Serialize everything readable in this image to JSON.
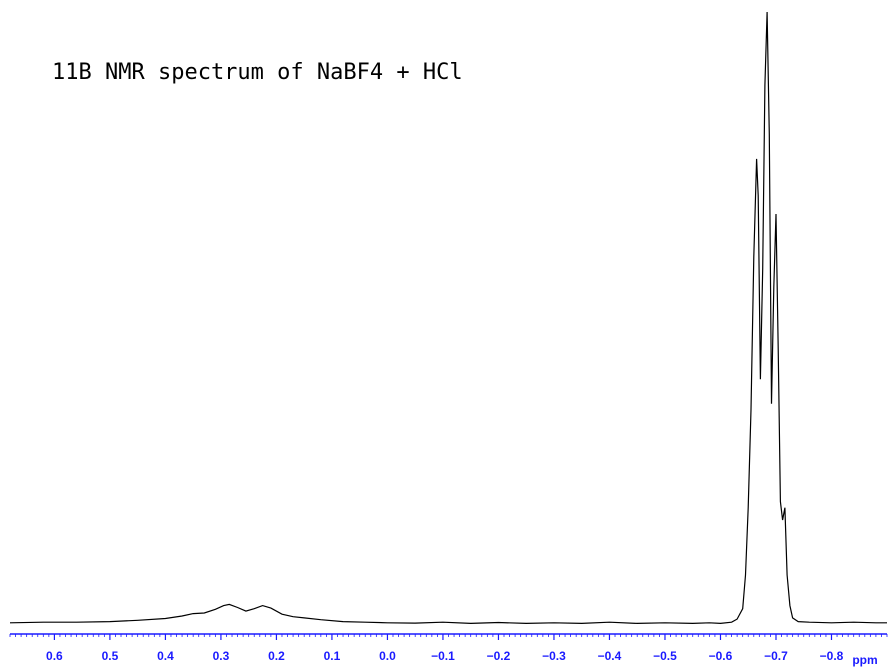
{
  "chart_data": {
    "type": "line",
    "title": "11B NMR spectrum of NaBF4 + HCl",
    "xlabel": "ppm",
    "ylabel": "",
    "x_reversed": true,
    "xlim": [
      0.68,
      -0.9
    ],
    "ylim": [
      0,
      100
    ],
    "grid": false,
    "xticks": [
      {
        "value": 0.6,
        "label": "0.6"
      },
      {
        "value": 0.5,
        "label": "0.5"
      },
      {
        "value": 0.4,
        "label": "0.4"
      },
      {
        "value": 0.3,
        "label": "0.3"
      },
      {
        "value": 0.2,
        "label": "0.2"
      },
      {
        "value": 0.1,
        "label": "0.1"
      },
      {
        "value": 0.0,
        "label": "0.0"
      },
      {
        "value": -0.1,
        "label": "−0.1"
      },
      {
        "value": -0.2,
        "label": "−0.2"
      },
      {
        "value": -0.3,
        "label": "−0.3"
      },
      {
        "value": -0.4,
        "label": "−0.4"
      },
      {
        "value": -0.5,
        "label": "−0.5"
      },
      {
        "value": -0.6,
        "label": "−0.6"
      },
      {
        "value": -0.7,
        "label": "−0.7"
      },
      {
        "value": -0.8,
        "label": "−0.8"
      }
    ],
    "series": [
      {
        "color": "#000000",
        "points": [
          [
            0.68,
            0.2
          ],
          [
            0.62,
            0.3
          ],
          [
            0.56,
            0.3
          ],
          [
            0.5,
            0.4
          ],
          [
            0.45,
            0.6
          ],
          [
            0.4,
            0.9
          ],
          [
            0.37,
            1.3
          ],
          [
            0.35,
            1.7
          ],
          [
            0.33,
            1.8
          ],
          [
            0.31,
            2.4
          ],
          [
            0.295,
            3.0
          ],
          [
            0.285,
            3.2
          ],
          [
            0.27,
            2.7
          ],
          [
            0.255,
            2.1
          ],
          [
            0.24,
            2.5
          ],
          [
            0.225,
            3.0
          ],
          [
            0.21,
            2.6
          ],
          [
            0.19,
            1.6
          ],
          [
            0.17,
            1.2
          ],
          [
            0.15,
            1.0
          ],
          [
            0.12,
            0.7
          ],
          [
            0.08,
            0.4
          ],
          [
            0.04,
            0.3
          ],
          [
            0.0,
            0.2
          ],
          [
            -0.05,
            0.15
          ],
          [
            -0.1,
            0.3
          ],
          [
            -0.15,
            0.1
          ],
          [
            -0.2,
            0.25
          ],
          [
            -0.25,
            0.1
          ],
          [
            -0.3,
            0.2
          ],
          [
            -0.35,
            0.1
          ],
          [
            -0.4,
            0.3
          ],
          [
            -0.45,
            0.1
          ],
          [
            -0.5,
            0.2
          ],
          [
            -0.55,
            0.1
          ],
          [
            -0.58,
            0.2
          ],
          [
            -0.6,
            0.1
          ],
          [
            -0.62,
            0.3
          ],
          [
            -0.63,
            0.8
          ],
          [
            -0.64,
            2.5
          ],
          [
            -0.645,
            8.0
          ],
          [
            -0.65,
            19.0
          ],
          [
            -0.655,
            35.0
          ],
          [
            -0.66,
            60.0
          ],
          [
            -0.665,
            76.0
          ],
          [
            -0.668,
            70.0
          ],
          [
            -0.672,
            40.0
          ],
          [
            -0.676,
            58.0
          ],
          [
            -0.68,
            88.0
          ],
          [
            -0.684,
            100.0
          ],
          [
            -0.688,
            80.0
          ],
          [
            -0.692,
            36.0
          ],
          [
            -0.696,
            55.0
          ],
          [
            -0.7,
            67.0
          ],
          [
            -0.704,
            45.0
          ],
          [
            -0.708,
            20.0
          ],
          [
            -0.712,
            17.0
          ],
          [
            -0.716,
            19.0
          ],
          [
            -0.72,
            8.0
          ],
          [
            -0.725,
            3.0
          ],
          [
            -0.73,
            1.0
          ],
          [
            -0.74,
            0.4
          ],
          [
            -0.76,
            0.3
          ],
          [
            -0.8,
            0.2
          ],
          [
            -0.84,
            0.3
          ],
          [
            -0.88,
            0.2
          ],
          [
            -0.9,
            0.2
          ]
        ]
      }
    ],
    "colors": {
      "spectrum": "#000000",
      "axis": "#1a1aff",
      "tick_label": "#1a1aff",
      "title": "#000000"
    }
  }
}
